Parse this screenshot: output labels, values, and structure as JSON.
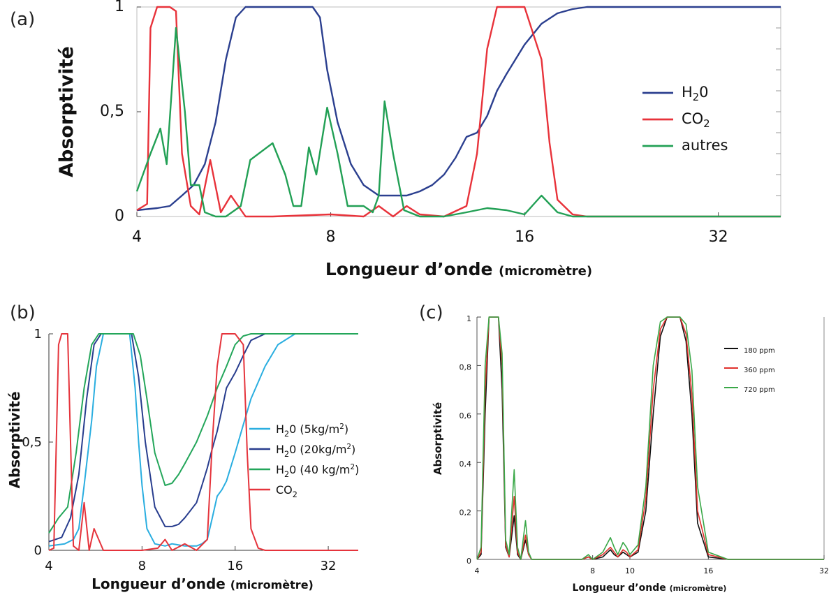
{
  "chart_data": [
    {
      "panel": "(a)",
      "type": "line",
      "xlabel": "Longueur d’onde",
      "xlabel_unit": "(micromètre)",
      "ylabel": "Absorptivité",
      "x_scale": "log",
      "xlim": [
        4,
        40
      ],
      "ylim": [
        0,
        1
      ],
      "x_ticks": [
        4,
        8,
        16,
        32
      ],
      "x_tick_labels": [
        "4",
        "8",
        "16",
        "32"
      ],
      "y_ticks": [
        0,
        0.5,
        1
      ],
      "y_tick_labels": [
        "0",
        "0,5",
        "1"
      ],
      "legend_position": "right",
      "series": [
        {
          "name": "H20",
          "legend_base": "H",
          "legend_sub": "2",
          "legend_tail": "0",
          "color": "#2b3f8f",
          "x": [
            4,
            4.3,
            4.5,
            4.7,
            4.9,
            5.1,
            5.3,
            5.5,
            5.7,
            5.9,
            6.1,
            6.5,
            7,
            7.3,
            7.5,
            7.7,
            7.9,
            8.2,
            8.6,
            9,
            9.5,
            10,
            10.5,
            11,
            11.5,
            12,
            12.5,
            13,
            13.5,
            14,
            14.5,
            15,
            16,
            17,
            18,
            19,
            20,
            22,
            25,
            30,
            40
          ],
          "y": [
            0.03,
            0.04,
            0.05,
            0.1,
            0.15,
            0.25,
            0.45,
            0.75,
            0.95,
            1,
            1,
            1,
            1,
            1,
            1,
            0.95,
            0.7,
            0.45,
            0.25,
            0.15,
            0.1,
            0.1,
            0.1,
            0.12,
            0.15,
            0.2,
            0.28,
            0.38,
            0.4,
            0.48,
            0.6,
            0.68,
            0.82,
            0.92,
            0.97,
            0.99,
            1,
            1,
            1,
            1,
            1
          ]
        },
        {
          "name": "CO2",
          "legend_base": "CO",
          "legend_sub": "2",
          "legend_tail": "",
          "color": "#e8323a",
          "x": [
            4,
            4.15,
            4.2,
            4.3,
            4.4,
            4.5,
            4.6,
            4.7,
            4.85,
            5,
            5.2,
            5.4,
            5.6,
            5.9,
            6.5,
            8,
            9,
            9.5,
            10,
            10.5,
            11,
            12,
            13,
            13.5,
            14,
            14.5,
            15,
            16,
            17,
            17.5,
            18,
            19,
            20,
            25,
            40
          ],
          "y": [
            0.03,
            0.06,
            0.9,
            1,
            1,
            1,
            0.98,
            0.3,
            0.05,
            0.01,
            0.27,
            0.02,
            0.1,
            0,
            0,
            0.01,
            0,
            0.05,
            0,
            0.05,
            0.01,
            0,
            0.05,
            0.3,
            0.8,
            1,
            1,
            1,
            0.75,
            0.35,
            0.08,
            0.01,
            0,
            0,
            0
          ]
        },
        {
          "name": "autres",
          "color": "#22a055",
          "x": [
            4,
            4.2,
            4.35,
            4.45,
            4.6,
            4.75,
            4.85,
            5,
            5.1,
            5.3,
            5.5,
            5.8,
            6,
            6.5,
            6.8,
            7,
            7.2,
            7.4,
            7.6,
            7.9,
            8.2,
            8.5,
            9,
            9.3,
            9.5,
            9.7,
            10,
            10.4,
            11,
            12,
            13,
            14,
            15,
            16,
            17,
            18,
            19,
            20,
            25,
            40
          ],
          "y": [
            0.12,
            0.3,
            0.42,
            0.25,
            0.9,
            0.5,
            0.15,
            0.15,
            0.02,
            0,
            0,
            0.05,
            0.27,
            0.35,
            0.2,
            0.05,
            0.05,
            0.33,
            0.2,
            0.52,
            0.3,
            0.05,
            0.05,
            0.02,
            0.1,
            0.55,
            0.3,
            0.03,
            0,
            0,
            0.02,
            0.04,
            0.03,
            0.01,
            0.1,
            0.02,
            0,
            0,
            0,
            0
          ]
        }
      ]
    },
    {
      "panel": "(b)",
      "type": "line",
      "xlabel": "Longueur d’onde",
      "xlabel_unit": "(micromètre)",
      "ylabel": "Absorptivité",
      "x_scale": "log",
      "xlim": [
        4,
        40
      ],
      "ylim": [
        0,
        1
      ],
      "x_ticks": [
        4,
        8,
        16,
        32
      ],
      "x_tick_labels": [
        "4",
        "8",
        "16",
        "32"
      ],
      "y_ticks": [
        0,
        0.5,
        1
      ],
      "y_tick_labels": [
        "0",
        "0,5",
        "1"
      ],
      "legend_position": "right",
      "series": [
        {
          "name": "H20 (5kg/m2)",
          "legend_base": "H",
          "legend_sub": "2",
          "legend_tail": "0 (5kg/m",
          "legend_sup": "2",
          "legend_end": ")",
          "color": "#2aaee0",
          "x": [
            4,
            4.5,
            4.8,
            5,
            5.2,
            5.5,
            5.7,
            5.9,
            6,
            6.2,
            6.5,
            7,
            7.3,
            7.6,
            7.8,
            8,
            8.3,
            8.8,
            9.5,
            10,
            11,
            12,
            12.5,
            13,
            13.5,
            14,
            14.5,
            15,
            16,
            17,
            18,
            20,
            22,
            25,
            30,
            40
          ],
          "y": [
            0.02,
            0.03,
            0.05,
            0.1,
            0.3,
            0.6,
            0.85,
            0.95,
            1,
            1,
            1,
            1,
            1,
            0.75,
            0.5,
            0.3,
            0.1,
            0.03,
            0.02,
            0.03,
            0.02,
            0.02,
            0.03,
            0.05,
            0.15,
            0.25,
            0.28,
            0.32,
            0.45,
            0.58,
            0.7,
            0.85,
            0.95,
            1,
            1,
            1
          ]
        },
        {
          "name": "H20 (20kg/m2)",
          "legend_base": "H",
          "legend_sub": "2",
          "legend_tail": "0 (20kg/m",
          "legend_sup": "2",
          "legend_end": ")",
          "color": "#283d8e",
          "x": [
            4,
            4.4,
            4.7,
            5,
            5.3,
            5.6,
            5.9,
            6.2,
            6.5,
            7,
            7.4,
            7.8,
            8.2,
            8.8,
            9.5,
            10,
            10.5,
            11,
            12,
            12.5,
            13,
            13.5,
            14,
            14.5,
            15,
            16,
            17,
            18,
            20,
            25,
            40
          ],
          "y": [
            0.04,
            0.06,
            0.15,
            0.35,
            0.7,
            0.95,
            1,
            1,
            1,
            1,
            1,
            0.8,
            0.5,
            0.2,
            0.11,
            0.11,
            0.12,
            0.15,
            0.22,
            0.3,
            0.38,
            0.47,
            0.55,
            0.65,
            0.75,
            0.82,
            0.9,
            0.97,
            1,
            1,
            1
          ]
        },
        {
          "name": "H20 (40 kg/m2)",
          "legend_base": "H",
          "legend_sub": "2",
          "legend_tail": "0 (40 kg/m",
          "legend_sup": "2",
          "legend_end": ")",
          "color": "#23a65a",
          "x": [
            4,
            4.3,
            4.6,
            4.9,
            5.2,
            5.5,
            5.8,
            6.2,
            7,
            7.5,
            7.9,
            8.3,
            8.8,
            9.5,
            10,
            10.5,
            11,
            12,
            13,
            14,
            15,
            16,
            17,
            18,
            20,
            25,
            40
          ],
          "y": [
            0.08,
            0.15,
            0.2,
            0.45,
            0.75,
            0.95,
            1,
            1,
            1,
            1,
            0.9,
            0.7,
            0.45,
            0.3,
            0.31,
            0.35,
            0.4,
            0.5,
            0.62,
            0.75,
            0.85,
            0.95,
            0.99,
            1,
            1,
            1,
            1
          ]
        },
        {
          "name": "CO2",
          "legend_base": "CO",
          "legend_sub": "2",
          "legend_tail": "",
          "color": "#e5343c",
          "x": [
            4,
            4.15,
            4.3,
            4.4,
            4.5,
            4.6,
            4.7,
            4.8,
            5,
            5.2,
            5.4,
            5.6,
            6,
            7,
            8,
            9,
            9.5,
            10,
            11,
            12,
            13,
            13.5,
            14,
            14.5,
            15,
            16,
            17,
            17.5,
            18,
            19,
            20,
            25,
            40
          ],
          "y": [
            0,
            0.01,
            0.95,
            1,
            1,
            1,
            0.5,
            0.02,
            0,
            0.22,
            0,
            0.1,
            0,
            0,
            0,
            0.01,
            0.05,
            0,
            0.03,
            0,
            0.05,
            0.5,
            0.85,
            1,
            1,
            1,
            0.95,
            0.45,
            0.1,
            0.01,
            0,
            0,
            0
          ]
        }
      ]
    },
    {
      "panel": "(c)",
      "type": "line",
      "xlabel": "Longueur d’onde",
      "xlabel_unit": "(micromètre)",
      "ylabel": "Absorptivité",
      "x_scale": "log",
      "xlim": [
        4,
        32
      ],
      "ylim": [
        0,
        1
      ],
      "x_ticks": [
        4,
        8,
        10,
        16,
        32
      ],
      "x_tick_labels": [
        "4",
        "8",
        "10",
        "16",
        "32"
      ],
      "y_ticks": [
        0,
        0.2,
        0.4,
        0.6,
        0.8,
        1
      ],
      "y_tick_labels": [
        "0",
        "0,2",
        "0,4",
        "0,6",
        "0,8",
        "1"
      ],
      "legend_position": "top-right",
      "series": [
        {
          "name": "180 ppm",
          "color": "#111111",
          "x": [
            4,
            4.1,
            4.2,
            4.3,
            4.45,
            4.55,
            4.65,
            4.75,
            4.85,
            5.0,
            5.1,
            5.2,
            5.35,
            5.45,
            5.55,
            5.7,
            6,
            7,
            7.5,
            7.8,
            8,
            8.5,
            8.9,
            9.1,
            9.3,
            9.6,
            9.8,
            10,
            10.5,
            11,
            11.5,
            12,
            12.5,
            13,
            13.5,
            14,
            14.5,
            15,
            16,
            18,
            24,
            32
          ],
          "y": [
            0,
            0.02,
            0.6,
            1,
            1,
            1,
            0.7,
            0.05,
            0.01,
            0.18,
            0.02,
            0,
            0.08,
            0.02,
            0,
            0,
            0,
            0,
            0,
            0.01,
            0,
            0.01,
            0.04,
            0.02,
            0.01,
            0.03,
            0.02,
            0.01,
            0.03,
            0.2,
            0.6,
            0.92,
            1,
            1,
            1,
            0.9,
            0.6,
            0.15,
            0.01,
            0,
            0,
            0
          ]
        },
        {
          "name": "360 ppm",
          "color": "#e0302c",
          "x": [
            4,
            4.1,
            4.2,
            4.3,
            4.45,
            4.55,
            4.65,
            4.75,
            4.85,
            5.0,
            5.1,
            5.2,
            5.35,
            5.45,
            5.55,
            5.7,
            6,
            7,
            7.5,
            7.8,
            8,
            8.5,
            8.9,
            9.1,
            9.3,
            9.6,
            9.8,
            10,
            10.5,
            11,
            11.5,
            12,
            12.5,
            13,
            13.5,
            14,
            14.5,
            15,
            16,
            18,
            24,
            32
          ],
          "y": [
            0,
            0.03,
            0.7,
            1,
            1,
            1,
            0.8,
            0.06,
            0.01,
            0.26,
            0.03,
            0,
            0.1,
            0.02,
            0,
            0,
            0,
            0,
            0,
            0.01,
            0,
            0.02,
            0.05,
            0.03,
            0.01,
            0.04,
            0.03,
            0.01,
            0.04,
            0.25,
            0.7,
            0.95,
            1,
            1,
            1,
            0.93,
            0.68,
            0.2,
            0.02,
            0,
            0,
            0
          ]
        },
        {
          "name": "720 ppm",
          "color": "#3aa848",
          "x": [
            4,
            4.1,
            4.2,
            4.3,
            4.45,
            4.55,
            4.65,
            4.75,
            4.85,
            5.0,
            5.1,
            5.2,
            5.35,
            5.45,
            5.55,
            5.7,
            6,
            7,
            7.5,
            7.8,
            8,
            8.5,
            8.9,
            9.1,
            9.3,
            9.6,
            9.8,
            10,
            10.5,
            11,
            11.5,
            12,
            12.5,
            13,
            13.5,
            14,
            14.5,
            15,
            16,
            18,
            24,
            32
          ],
          "y": [
            0,
            0.05,
            0.8,
            1,
            1,
            1,
            0.85,
            0.08,
            0.02,
            0.37,
            0.05,
            0,
            0.16,
            0.03,
            0,
            0,
            0,
            0,
            0,
            0.02,
            0,
            0.03,
            0.09,
            0.05,
            0.02,
            0.07,
            0.05,
            0.02,
            0.06,
            0.3,
            0.8,
            0.98,
            1,
            1,
            1,
            0.97,
            0.78,
            0.3,
            0.03,
            0,
            0,
            0
          ]
        }
      ]
    }
  ]
}
